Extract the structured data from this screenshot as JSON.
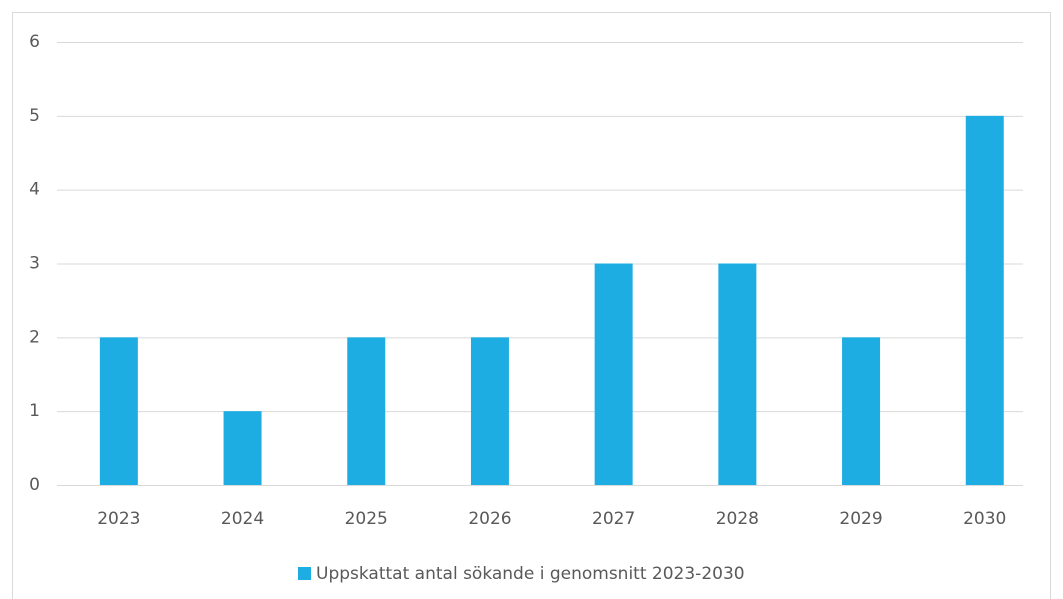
{
  "chart_data": {
    "type": "bar",
    "categories": [
      "2023",
      "2024",
      "2025",
      "2026",
      "2027",
      "2028",
      "2029",
      "2030"
    ],
    "series": [
      {
        "name": "Uppskattat antal sökande i genomsnitt 2023-2030",
        "color": "#1eade3",
        "values": [
          2,
          1,
          2,
          2,
          3,
          3,
          2,
          5
        ]
      }
    ],
    "ylim": [
      0,
      6
    ],
    "yticks": [
      0,
      1,
      2,
      3,
      4,
      5,
      6
    ],
    "grid": true,
    "legend": "bottom"
  }
}
